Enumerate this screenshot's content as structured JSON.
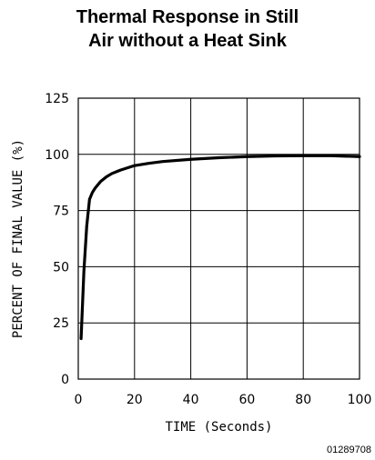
{
  "chart_data": {
    "type": "line",
    "title_lines": [
      "Thermal Response in Still",
      "Air without a Heat Sink"
    ],
    "xlabel": "TIME (Seconds)",
    "ylabel": "PERCENT OF FINAL VALUE (%)",
    "xlim": [
      0,
      100
    ],
    "ylim": [
      0,
      125
    ],
    "x_ticks": [
      "0",
      "20",
      "40",
      "60",
      "80",
      "100"
    ],
    "y_ticks": [
      "0",
      "25",
      "50",
      "75",
      "100",
      "125"
    ],
    "x_tick_values": [
      0,
      20,
      40,
      60,
      80,
      100
    ],
    "y_tick_values": [
      0,
      25,
      50,
      75,
      100,
      125
    ],
    "grid": true,
    "series": [
      {
        "x": [
          1,
          2,
          3,
          4,
          5,
          6,
          8,
          10,
          12,
          15,
          20,
          25,
          30,
          40,
          50,
          60,
          70,
          80,
          90,
          100
        ],
        "y": [
          18,
          48,
          68,
          80,
          83,
          85,
          88,
          90,
          91.5,
          93,
          95,
          96,
          96.8,
          97.8,
          98.5,
          99,
          99.3,
          99.4,
          99.4,
          99
        ]
      }
    ]
  },
  "figure_id": "01289708"
}
